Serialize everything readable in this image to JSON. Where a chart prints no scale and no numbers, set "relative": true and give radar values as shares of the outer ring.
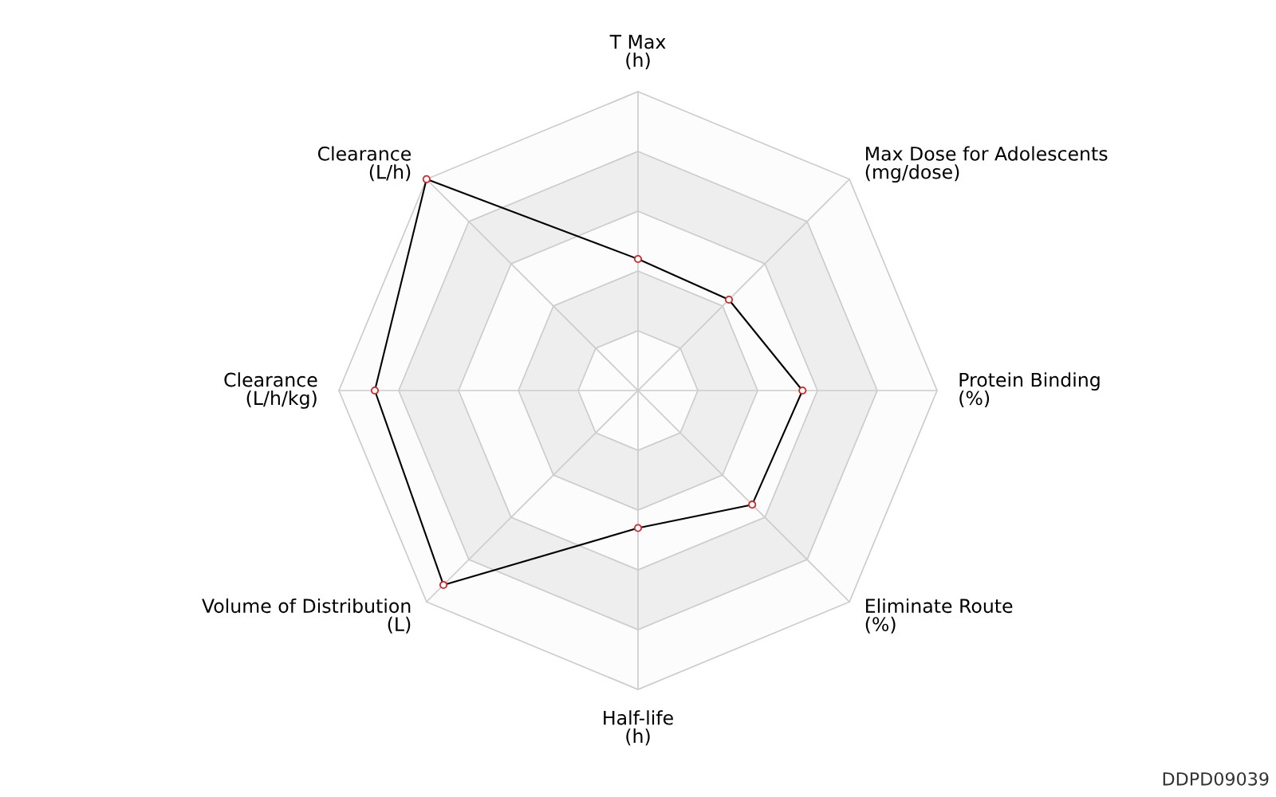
{
  "chart_data": {
    "type": "radar",
    "relative": true,
    "categories": [
      "T Max\n(h)",
      "Max Dose for Adolescents\n(mg/dose)",
      "Protein Binding\n(%)",
      "Eliminate Route\n(%)",
      "Half-life\n(h)",
      "Volume of Distribution\n(L)",
      "Clearance\n(L/h/kg)",
      "Clearance\n(L/h)"
    ],
    "series": [
      {
        "color": "#000000",
        "values": [
          0.44,
          0.43,
          0.55,
          0.54,
          0.46,
          0.92,
          0.88,
          1.0
        ]
      }
    ],
    "marker": "circle",
    "line_style": "solid",
    "annotations": [
      "DDPD09039"
    ]
  }
}
